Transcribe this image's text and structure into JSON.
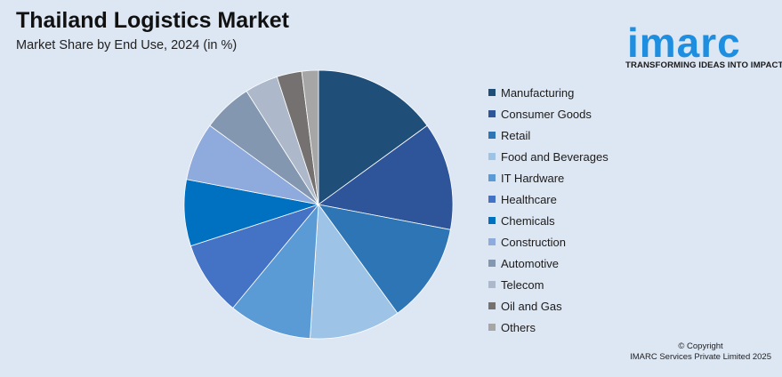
{
  "header": {
    "title": "Thailand Logistics Market",
    "subtitle": "Market Share by End Use, 2024 (in %)"
  },
  "logo": {
    "word": "imarc",
    "tagline": "TRANSFORMING IDEAS INTO IMPACT",
    "color": "#1e8fe0"
  },
  "chart_data": {
    "type": "pie",
    "title": "Thailand Logistics Market",
    "subtitle": "Market Share by End Use, 2024 (in %)",
    "legend_position": "right",
    "categories": [
      "Manufacturing",
      "Consumer Goods",
      "Retail",
      "Food and Beverages",
      "IT Hardware",
      "Healthcare",
      "Chemicals",
      "Construction",
      "Automotive",
      "Telecom",
      "Oil and Gas",
      "Others"
    ],
    "values": [
      15,
      13,
      12,
      11,
      10,
      9,
      8,
      7,
      6,
      4,
      3,
      2
    ],
    "colors": [
      "#1f4e79",
      "#2e5599",
      "#2e75b6",
      "#9dc3e6",
      "#5b9bd5",
      "#4472c4",
      "#0070c0",
      "#8faadc",
      "#8497b0",
      "#adb9ca",
      "#767171",
      "#a6a6a6"
    ]
  },
  "footer": {
    "copyright_line1": "© Copyright",
    "copyright_line2": "IMARC Services Private Limited 2025"
  }
}
